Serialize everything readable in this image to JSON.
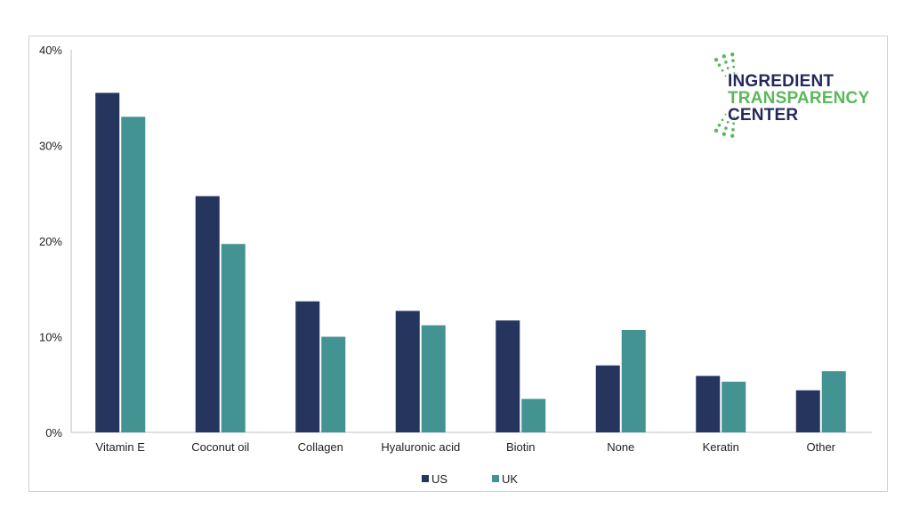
{
  "chart_data": {
    "type": "bar",
    "title": "",
    "xlabel": "",
    "ylabel": "",
    "categories": [
      "Vitamin E",
      "Coconut oil",
      "Collagen",
      "Hyaluronic acid",
      "Biotin",
      "None",
      "Keratin",
      "Other"
    ],
    "series": [
      {
        "name": "US",
        "color": "#26355e",
        "values": [
          35.5,
          24.7,
          13.7,
          12.7,
          11.7,
          7.0,
          5.9,
          4.4
        ]
      },
      {
        "name": "UK",
        "color": "#449393",
        "values": [
          33.0,
          19.7,
          10.0,
          11.2,
          3.5,
          10.7,
          5.3,
          6.4
        ]
      }
    ],
    "ylim": [
      0,
      40
    ],
    "yticks": [
      "0%",
      "10%",
      "20%",
      "30%",
      "40%"
    ],
    "grid": false,
    "legend": "bottom"
  },
  "logo": {
    "line1": "INGREDIENT",
    "line2": "TRANSPARENCY",
    "line3": "CENTER",
    "dot_color": "#5cb85c"
  }
}
